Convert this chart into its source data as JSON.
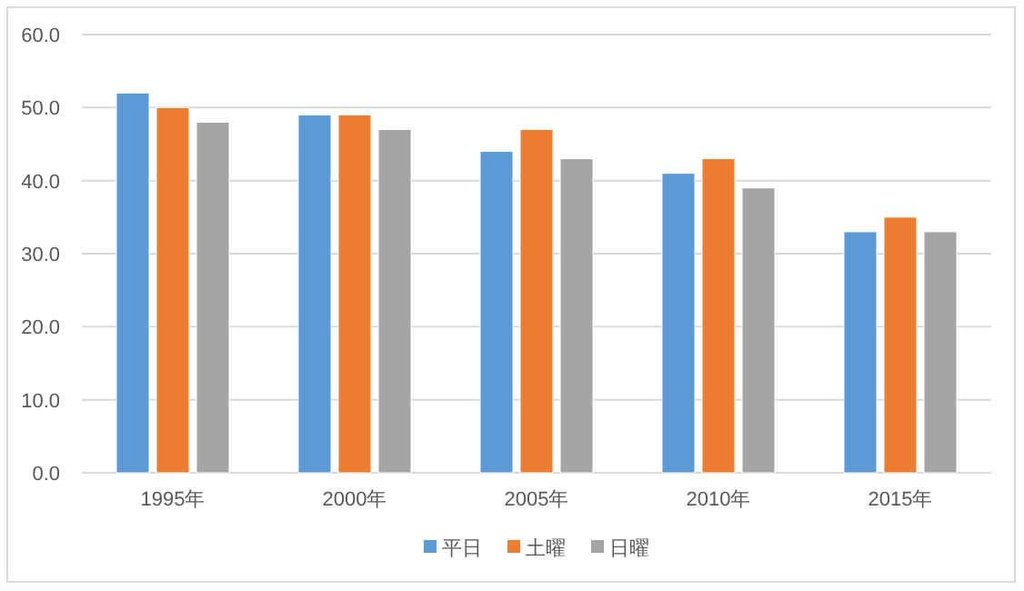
{
  "chart_data": {
    "type": "bar",
    "categories": [
      "1995年",
      "2000年",
      "2005年",
      "2010年",
      "2015年"
    ],
    "series": [
      {
        "name": "平日",
        "color": "#5b9bd5",
        "values": [
          52,
          49,
          44,
          41,
          33
        ]
      },
      {
        "name": "土曜",
        "color": "#ed7d31",
        "values": [
          50,
          49,
          47,
          43,
          35
        ]
      },
      {
        "name": "日曜",
        "color": "#a5a5a5",
        "values": [
          48,
          47,
          43,
          39,
          33
        ]
      }
    ],
    "ylim": [
      0,
      60
    ],
    "yticks": [
      {
        "value": 0,
        "label": "0.0"
      },
      {
        "value": 10,
        "label": "10.0"
      },
      {
        "value": 20,
        "label": "20.0"
      },
      {
        "value": 30,
        "label": "30.0"
      },
      {
        "value": 40,
        "label": "40.0"
      },
      {
        "value": 50,
        "label": "50.0"
      },
      {
        "value": 60,
        "label": "60.0"
      }
    ],
    "grid": "y",
    "legend": "bottom"
  }
}
